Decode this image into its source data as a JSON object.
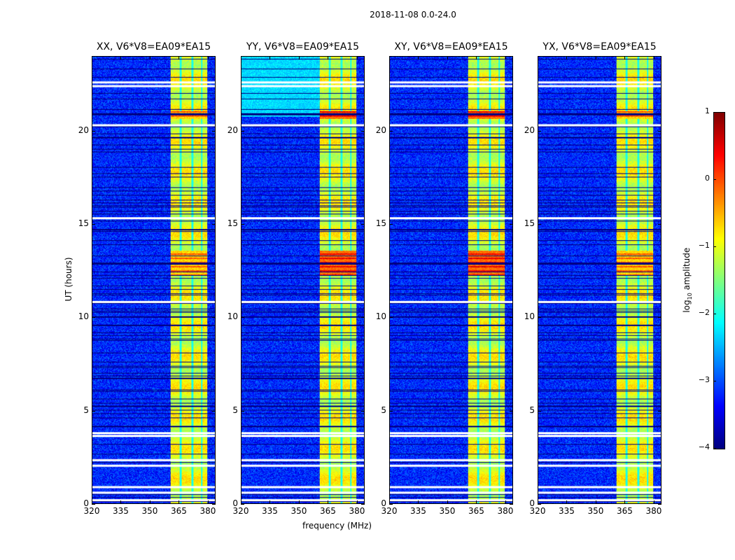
{
  "chart_data": {
    "type": "heatmap",
    "suptitle": "2018-11-08 0.0-24.0",
    "xlabel": "frequency (MHz)",
    "ylabel": "UT (hours)",
    "xlim": [
      320,
      384
    ],
    "ylim": [
      0,
      24
    ],
    "xticks": [
      320,
      335,
      350,
      365,
      380
    ],
    "yticks": [
      0,
      5,
      10,
      15,
      20
    ],
    "panels": [
      {
        "title": "XX, V6*V8=EA09*EA15",
        "pol": "XX"
      },
      {
        "title": "YY, V6*V8=EA09*EA15",
        "pol": "YY"
      },
      {
        "title": "XY, V6*V8=EA09*EA15",
        "pol": "XY"
      },
      {
        "title": "YX, V6*V8=EA09*EA15",
        "pol": "YX"
      }
    ],
    "band_mhz": [
      360.5,
      380
    ],
    "background_log_amp": -3.2,
    "band_log_amp": -1.0,
    "bright_ut_ranges": [
      [
        12.3,
        13.6
      ],
      [
        20.7,
        21.1
      ]
    ],
    "flagged_ut": [
      0.15,
      0.55,
      0.85,
      2.0,
      2.3,
      3.6,
      3.75,
      10.8,
      15.3,
      20.3,
      22.4,
      22.6
    ],
    "colorbar": {
      "label": "log10 amplitude",
      "label_main": "log",
      "label_sub": "10",
      "label_rest": " amplitude",
      "range": [
        -4,
        1
      ],
      "ticks": [
        "1",
        "0",
        "−1",
        "−2",
        "−3",
        "−4"
      ],
      "colormap": "jet"
    }
  }
}
